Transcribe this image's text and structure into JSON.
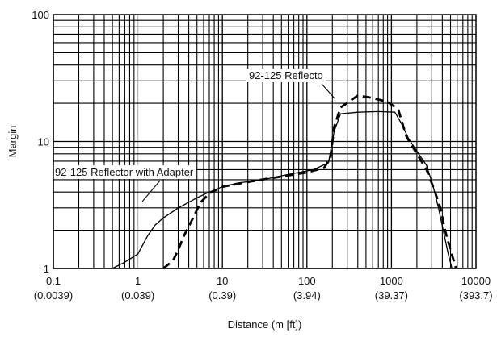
{
  "chart_data": {
    "type": "line",
    "title": "",
    "xlabel": "Distance (m [ft])",
    "ylabel": "Margin",
    "x_scale": "log",
    "y_scale": "log",
    "xlim": [
      0.1,
      10000
    ],
    "ylim": [
      1,
      100
    ],
    "grid": true,
    "x_ticks": [
      {
        "value": 0.1,
        "label": "0.1",
        "sublabel": "(0.0039)"
      },
      {
        "value": 1,
        "label": "1",
        "sublabel": "(0.039)"
      },
      {
        "value": 10,
        "label": "10",
        "sublabel": "(0.39)"
      },
      {
        "value": 100,
        "label": "100",
        "sublabel": "(3.94)"
      },
      {
        "value": 1000,
        "label": "1000",
        "sublabel": "(39.37)"
      },
      {
        "value": 10000,
        "label": "10000",
        "sublabel": "(393.7)"
      }
    ],
    "y_ticks": [
      {
        "value": 1,
        "label": "1"
      },
      {
        "value": 10,
        "label": "10"
      },
      {
        "value": 100,
        "label": "100"
      }
    ],
    "series": [
      {
        "name": "92-125 Reflector with Adapter",
        "style": "solid",
        "color": "#000000",
        "points": [
          [
            0.5,
            1.0
          ],
          [
            0.7,
            1.12
          ],
          [
            1.0,
            1.3
          ],
          [
            1.3,
            1.8
          ],
          [
            1.6,
            2.2
          ],
          [
            2.0,
            2.5
          ],
          [
            3.0,
            3.0
          ],
          [
            5.0,
            3.6
          ],
          [
            7.0,
            4.0
          ],
          [
            10,
            4.4
          ],
          [
            15,
            4.7
          ],
          [
            30,
            5.0
          ],
          [
            60,
            5.5
          ],
          [
            120,
            6.0
          ],
          [
            180,
            6.8
          ],
          [
            210,
            12.0
          ],
          [
            250,
            16.5
          ],
          [
            400,
            17.0
          ],
          [
            700,
            17.2
          ],
          [
            1100,
            17.0
          ],
          [
            1300,
            14.0
          ],
          [
            1600,
            10.5
          ],
          [
            2100,
            8.0
          ],
          [
            2600,
            6.5
          ],
          [
            3100,
            4.5
          ],
          [
            3600,
            3.0
          ],
          [
            4100,
            2.0
          ],
          [
            4700,
            1.3
          ],
          [
            5200,
            1.0
          ]
        ]
      },
      {
        "name": "92-125 Reflecto",
        "style": "dashed",
        "color": "#000000",
        "points": [
          [
            2.0,
            1.0
          ],
          [
            2.6,
            1.15
          ],
          [
            3.0,
            1.4
          ],
          [
            3.5,
            1.8
          ],
          [
            4.5,
            2.5
          ],
          [
            5.5,
            3.3
          ],
          [
            7.0,
            3.9
          ],
          [
            10,
            4.4
          ],
          [
            20,
            4.8
          ],
          [
            50,
            5.3
          ],
          [
            100,
            5.7
          ],
          [
            160,
            6.2
          ],
          [
            190,
            7.5
          ],
          [
            210,
            13.0
          ],
          [
            250,
            18.5
          ],
          [
            400,
            23.0
          ],
          [
            600,
            22.0
          ],
          [
            900,
            20.5
          ],
          [
            1200,
            18.0
          ],
          [
            1500,
            11.0
          ],
          [
            2000,
            8.0
          ],
          [
            2600,
            6.0
          ],
          [
            3200,
            4.2
          ],
          [
            3800,
            3.0
          ],
          [
            4300,
            2.0
          ],
          [
            5000,
            1.4
          ],
          [
            5800,
            1.0
          ]
        ]
      }
    ],
    "annotations": [
      {
        "text": "92-125 Reflecto",
        "target_series": "92-125 Reflecto"
      },
      {
        "text": "92-125 Reflector with Adapter",
        "target_series": "92-125 Reflector with Adapter"
      }
    ]
  }
}
